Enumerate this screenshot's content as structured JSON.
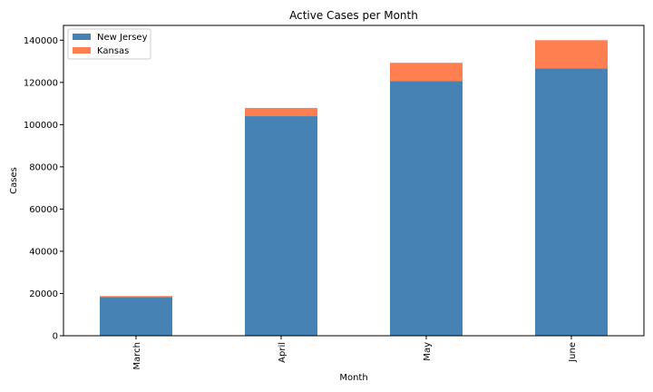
{
  "chart_data": {
    "type": "bar",
    "stacked": true,
    "title": "Active Cases per Month",
    "xlabel": "Month",
    "ylabel": "Cases",
    "categories": [
      "March",
      "April",
      "May",
      "June"
    ],
    "series": [
      {
        "name": "New Jersey",
        "color": "#4682b4",
        "values": [
          18300,
          104000,
          120700,
          126700
        ]
      },
      {
        "name": "Kansas",
        "color": "#ff7f50",
        "values": [
          500,
          3900,
          8600,
          13300
        ]
      }
    ],
    "ylim": [
      0,
      147000
    ],
    "yticks": [
      0,
      20000,
      40000,
      60000,
      80000,
      100000,
      120000,
      140000
    ],
    "ytick_labels": [
      "0",
      "20000",
      "40000",
      "60000",
      "80000",
      "100000",
      "120000",
      "140000"
    ],
    "grid": false,
    "legend_position": "top-left"
  }
}
